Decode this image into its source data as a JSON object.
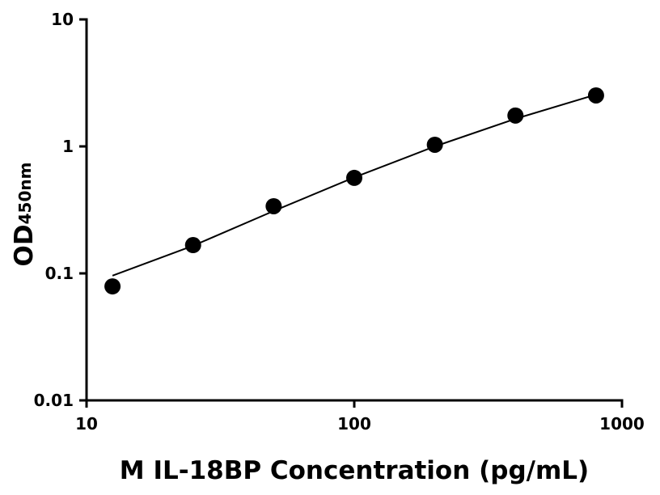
{
  "chart_data": {
    "type": "scatter",
    "xlabel": "M IL-18BP Concentration (pg/mL)",
    "ylabel": "OD",
    "ylabel_sub": "450nm",
    "x": [
      12.5,
      25,
      50,
      100,
      200,
      400,
      800
    ],
    "values": [
      0.079,
      0.167,
      0.338,
      0.565,
      1.03,
      1.75,
      2.52
    ],
    "color": "#000000",
    "fit": {
      "x": [
        12.5,
        25,
        50,
        100,
        200,
        400,
        800
      ],
      "y": [
        0.096,
        0.165,
        0.31,
        0.57,
        1.0,
        1.65,
        2.56
      ]
    },
    "xscale": "log",
    "yscale": "log",
    "xlim": [
      10,
      1000
    ],
    "ylim": [
      0.01,
      10
    ],
    "xticks": [
      10,
      100,
      1000
    ],
    "yticks": [
      0.01,
      0.1,
      1,
      10
    ],
    "grid": false
  }
}
